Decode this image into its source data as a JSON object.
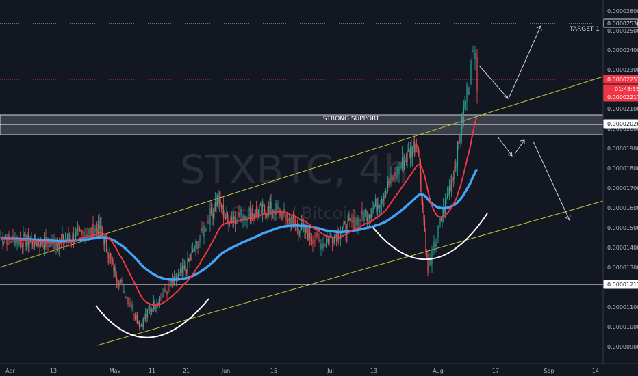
{
  "watermark": {
    "symbol": "STXBTC, 4h",
    "name": "Stacks / Bitcoin"
  },
  "annotations": {
    "target": "TARGET 1",
    "support": "STRONG SUPPORT"
  },
  "price_axis": {
    "ticks": [
      "0.00002600",
      "0.00002500",
      "0.00002400",
      "0.00002300",
      "0.00002100",
      "0.00002000",
      "0.00001900",
      "0.00001800",
      "0.00001700",
      "0.00001600",
      "0.00001500",
      "0.00001400",
      "0.00001300",
      "0.00001100",
      "0.00001000",
      "0.00000900"
    ],
    "badges": [
      {
        "key": "target",
        "label": "0.00002536",
        "value": 2.536e-05,
        "bg": "#131722",
        "fg": "#d1d4dc",
        "border": "#d1d4dc"
      },
      {
        "key": "redline",
        "label": "0.00002253",
        "value": 2.253e-05,
        "bg": "#f23645",
        "fg": "#ffffff",
        "border": "#f23645"
      },
      {
        "key": "timer",
        "label": "01:48:35",
        "value": 2.236e-05,
        "bg": "#f23645",
        "fg": "#ffffff",
        "border": "#f23645"
      },
      {
        "key": "last",
        "label": "0.00002217",
        "value": 2.217e-05,
        "bg": "#f23645",
        "fg": "#ffffff",
        "border": "#f23645"
      },
      {
        "key": "support",
        "label": "0.00002026",
        "value": 2.026e-05,
        "bg": "#ffffff",
        "fg": "#131722",
        "border": "#ffffff"
      },
      {
        "key": "low",
        "label": "0.00001217",
        "value": 1.217e-05,
        "bg": "#ffffff",
        "fg": "#131722",
        "border": "#ffffff"
      }
    ]
  },
  "time_axis": {
    "labels": [
      "Apr",
      "13",
      "May",
      "11",
      "21",
      "Jun",
      "15",
      "Jul",
      "13",
      "Aug",
      "17",
      "Sep",
      "14"
    ]
  },
  "colors": {
    "background": "#131722",
    "up": "#26a69a",
    "down": "#ef5350",
    "ema_fast": "#f23645",
    "ema_slow": "#42a5f5",
    "channel": "#c8c83c",
    "arc": "#ffffff",
    "target_line": "#d1d4dc",
    "red_line": "#f23645"
  },
  "chart_data": {
    "type": "candlestick",
    "title": "STXBTC, 4h",
    "subtitle": "Stacks / Bitcoin",
    "x": [
      "Apr",
      "13",
      "May",
      "11",
      "21",
      "Jun",
      "15",
      "Jul",
      "13",
      "Aug",
      "17",
      "Sep",
      "14"
    ],
    "ylim": [
      8.6e-06,
      2.67e-05
    ],
    "grid": false,
    "series": [
      {
        "name": "price",
        "values": [
          {
            "t": "Apr",
            "v": 1.45e-05
          },
          {
            "t": "13",
            "v": 1.42e-05
          },
          {
            "t": "Apr-end",
            "v": 1.5e-05
          },
          {
            "t": "May",
            "v": 1.28e-05
          },
          {
            "t": "May-8",
            "v": 1.01e-05
          },
          {
            "t": "11",
            "v": 1.1e-05
          },
          {
            "t": "21",
            "v": 1.3e-05
          },
          {
            "t": "late-May",
            "v": 1.65e-05
          },
          {
            "t": "Jun",
            "v": 1.55e-05
          },
          {
            "t": "15",
            "v": 1.6e-05
          },
          {
            "t": "Jul",
            "v": 1.42e-05
          },
          {
            "t": "13",
            "v": 1.6e-05
          },
          {
            "t": "late-Jul",
            "v": 1.95e-05
          },
          {
            "t": "Aug",
            "v": 1.28e-05
          },
          {
            "t": "Aug-8",
            "v": 1.82e-05
          },
          {
            "t": "Aug-12",
            "v": 2.47e-05
          },
          {
            "t": "last",
            "v": 2.217e-05
          }
        ]
      }
    ]
  }
}
